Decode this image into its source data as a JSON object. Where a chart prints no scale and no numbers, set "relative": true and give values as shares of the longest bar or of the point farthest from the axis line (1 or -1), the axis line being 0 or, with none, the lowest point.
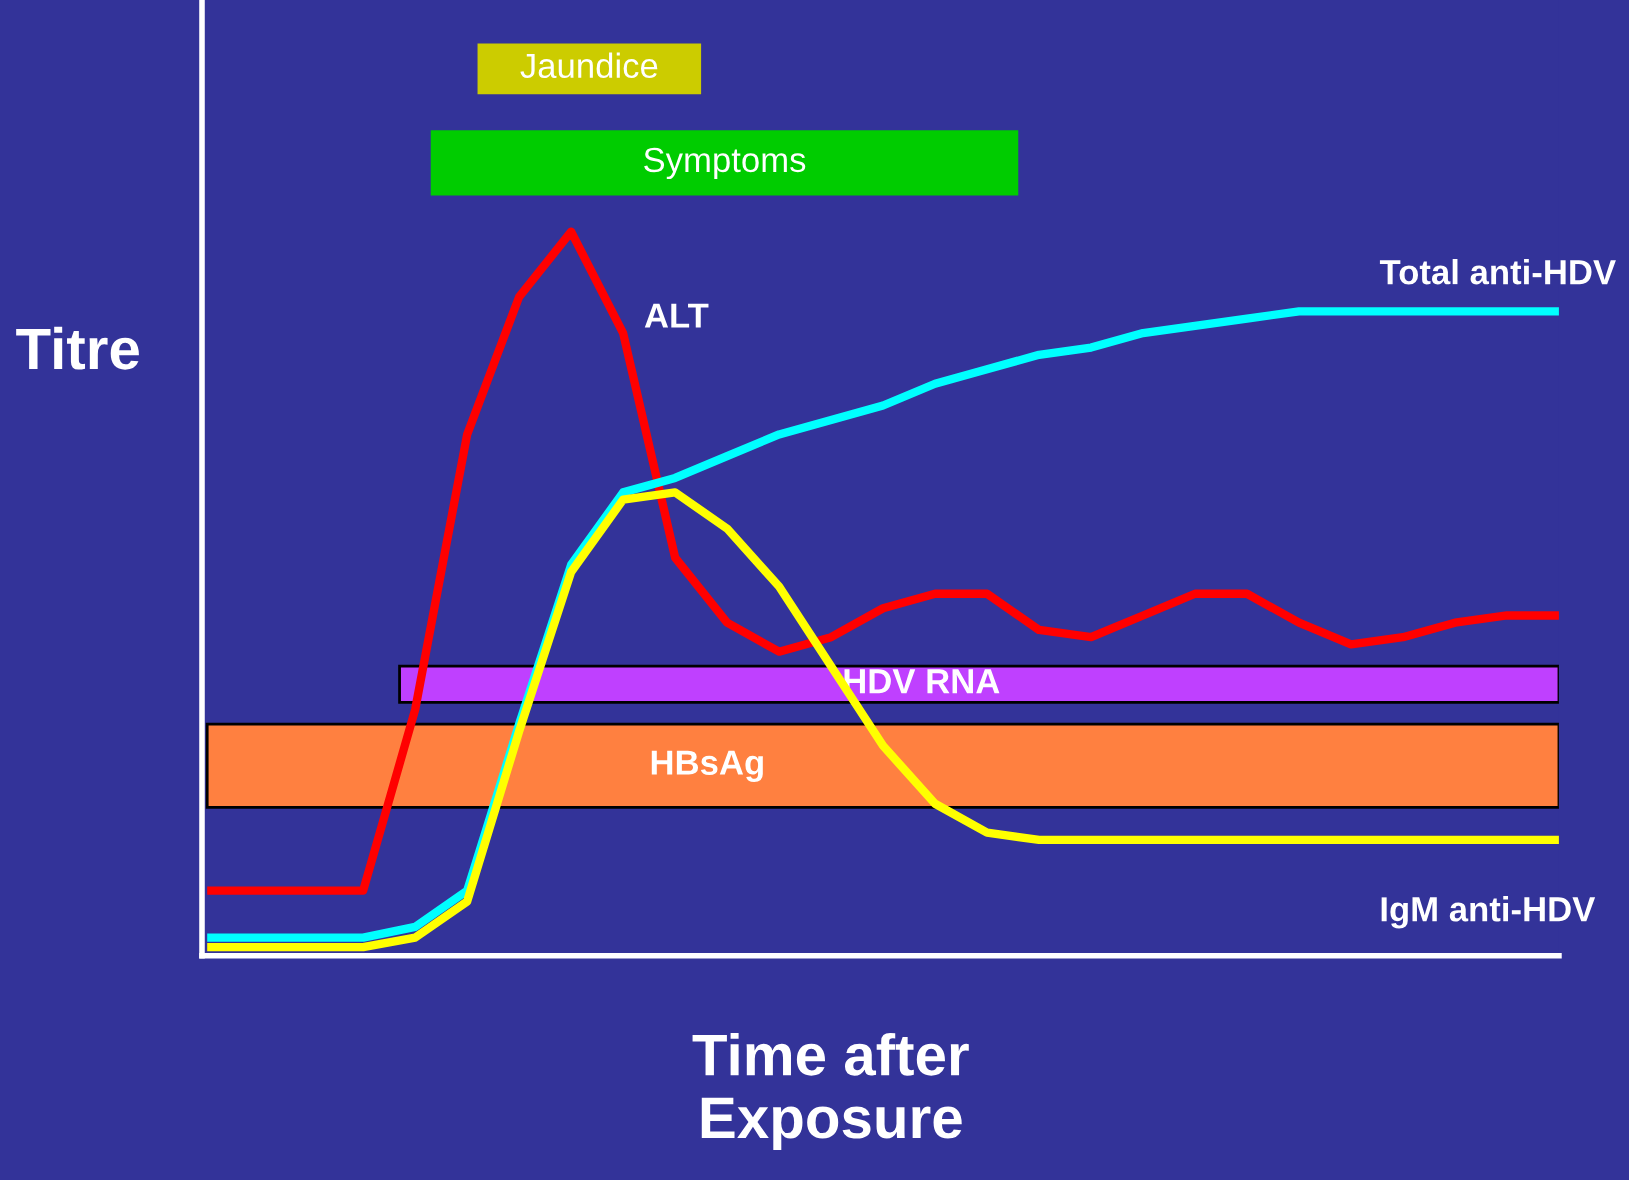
{
  "chart_data": {
    "type": "line",
    "relative": true,
    "ylabel": "Titre",
    "xlabel": "Time after\nExposure",
    "legend": false,
    "categories": [
      null,
      null,
      null,
      null,
      null,
      null,
      null,
      null,
      null,
      null,
      null,
      null,
      null,
      null,
      null,
      null,
      null,
      null,
      null,
      null,
      null,
      null,
      null,
      null,
      null,
      null,
      null
    ],
    "series": [
      {
        "name": "ALT",
        "color": "#ff0000",
        "values": [
          0.09,
          0.09,
          0.09,
          0.09,
          0.34,
          0.72,
          0.91,
          1,
          0.86,
          0.55,
          0.46,
          0.42,
          0.44,
          0.48,
          0.5,
          0.5,
          0.45,
          0.44,
          0.47,
          0.5,
          0.5,
          0.46,
          0.43,
          0.44,
          0.46,
          0.47,
          0.47
        ]
      },
      {
        "name": "Total anti-HDV",
        "color": "#00ffff",
        "values": [
          0.025,
          0.025,
          0.025,
          0.025,
          0.04,
          0.09,
          0.32,
          0.54,
          0.64,
          0.66,
          0.69,
          0.72,
          0.74,
          0.76,
          0.79,
          0.81,
          0.83,
          0.84,
          0.86,
          0.87,
          0.88,
          0.89,
          0.89,
          0.89,
          0.89,
          0.89,
          0.89
        ]
      },
      {
        "name": "IgM anti-HDV",
        "color": "#ffff00",
        "values": [
          0.012,
          0.012,
          0.012,
          0.012,
          0.025,
          0.075,
          0.31,
          0.53,
          0.63,
          0.64,
          0.59,
          0.51,
          0.4,
          0.29,
          0.21,
          0.17,
          0.16,
          0.16,
          0.16,
          0.16,
          0.16,
          0.16,
          0.16,
          0.16,
          0.16,
          0.16,
          0.16
        ]
      }
    ],
    "annotations": [
      "Jaundice",
      "Symptoms"
    ],
    "bands": [
      {
        "axis": "y",
        "from": 0.35,
        "to": 0.4,
        "label": "HDV RNA",
        "color": "#bf40ff"
      },
      {
        "axis": "y",
        "from": 0.205,
        "to": 0.32,
        "label": "HBsAg",
        "color": "#ff8040"
      }
    ]
  }
}
